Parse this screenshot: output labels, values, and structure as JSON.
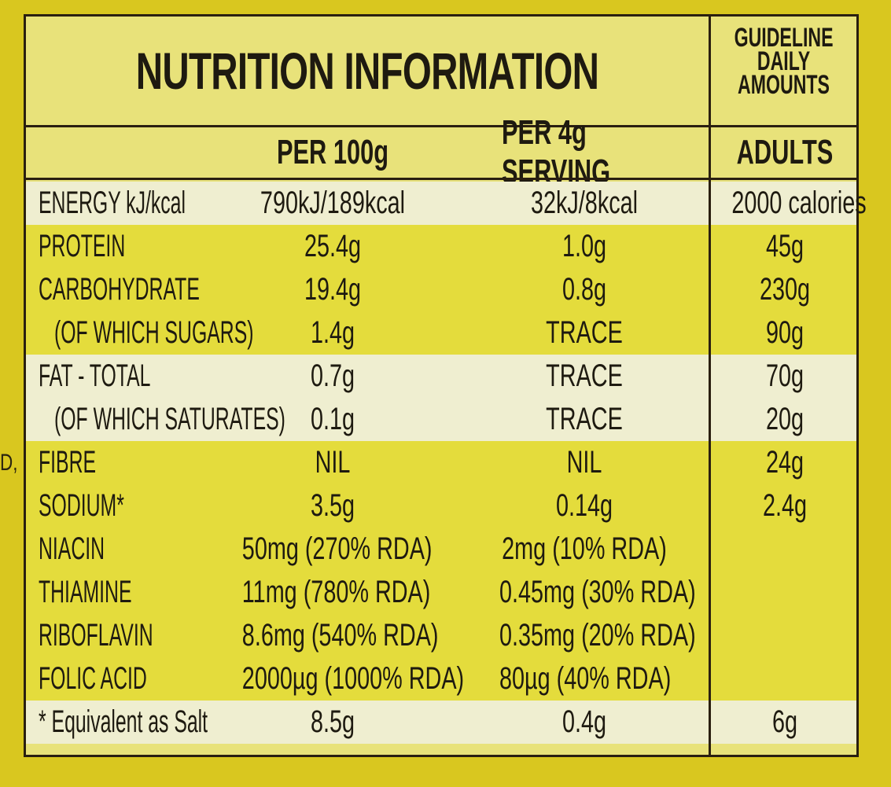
{
  "stray_text": "D,",
  "table": {
    "title": "NUTRITION INFORMATION",
    "gda_header_lines": [
      "GUIDELINE",
      "DAILY",
      "AMOUNTS"
    ],
    "columns": [
      "PER 100g",
      "PER 4g SERVING",
      "ADULTS"
    ],
    "rows": [
      {
        "label": "ENERGY kJ/kcal",
        "per100": "790kJ/189kcal",
        "perServing": "32kJ/8kcal",
        "gda": "2000 calories",
        "shade": "light",
        "indent": false
      },
      {
        "label": "PROTEIN",
        "per100": "25.4g",
        "perServing": "1.0g",
        "gda": "45g",
        "shade": "dark",
        "indent": false
      },
      {
        "label": "CARBOHYDRATE",
        "per100": "19.4g",
        "perServing": "0.8g",
        "gda": "230g",
        "shade": "dark",
        "indent": false
      },
      {
        "label": "(OF WHICH SUGARS)",
        "per100": "1.4g",
        "perServing": "TRACE",
        "gda": "90g",
        "shade": "dark",
        "indent": true
      },
      {
        "label": "FAT - TOTAL",
        "per100": "0.7g",
        "perServing": "TRACE",
        "gda": "70g",
        "shade": "light",
        "indent": false
      },
      {
        "label": "(OF WHICH SATURATES)",
        "per100": "0.1g",
        "perServing": "TRACE",
        "gda": "20g",
        "shade": "light",
        "indent": true
      },
      {
        "label": "FIBRE",
        "per100": "NIL",
        "perServing": "NIL",
        "gda": "24g",
        "shade": "dark",
        "indent": false
      },
      {
        "label": "SODIUM*",
        "per100": "3.5g",
        "perServing": "0.14g",
        "gda": "2.4g",
        "shade": "dark",
        "indent": false
      },
      {
        "label": "NIACIN",
        "per100": "50mg (270% RDA)",
        "perServing": "2mg (10% RDA)",
        "gda": "",
        "shade": "dark",
        "indent": false
      },
      {
        "label": "THIAMINE",
        "per100": "11mg (780% RDA)",
        "perServing": "0.45mg (30% RDA)",
        "gda": "",
        "shade": "dark",
        "indent": false
      },
      {
        "label": "RIBOFLAVIN",
        "per100": "8.6mg (540% RDA)",
        "perServing": "0.35mg (20% RDA)",
        "gda": "",
        "shade": "dark",
        "indent": false
      },
      {
        "label": "FOLIC ACID",
        "per100": "2000µg (1000% RDA)",
        "perServing": "80µg (40% RDA)",
        "gda": "",
        "shade": "dark",
        "indent": false
      },
      {
        "label": "* Equivalent as Salt",
        "per100": "8.5g",
        "perServing": "0.4g",
        "gda": "6g",
        "shade": "light",
        "indent": false
      }
    ]
  },
  "colors": {
    "background": "#d9c71f",
    "panel_light": "#efeed0",
    "panel_dark": "#e4dc3c",
    "ink": "#1e1a10"
  }
}
